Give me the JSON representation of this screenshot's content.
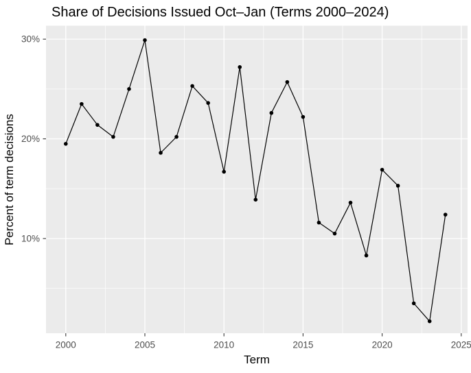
{
  "chart_data": {
    "type": "line",
    "title": "Share of Decisions Issued Oct–Jan (Terms 2000–2024)",
    "xlabel": "Term",
    "ylabel": "Percent of term decisions",
    "x": [
      2000,
      2001,
      2002,
      2003,
      2004,
      2005,
      2006,
      2007,
      2008,
      2009,
      2010,
      2011,
      2012,
      2013,
      2014,
      2015,
      2016,
      2017,
      2018,
      2019,
      2020,
      2021,
      2022,
      2023,
      2024
    ],
    "values": [
      19.5,
      23.5,
      21.4,
      20.2,
      25.0,
      29.9,
      18.6,
      20.2,
      25.3,
      23.6,
      16.7,
      27.2,
      13.9,
      22.6,
      25.7,
      22.2,
      11.6,
      10.5,
      13.6,
      8.3,
      16.9,
      15.3,
      3.5,
      1.7,
      12.4
    ],
    "xlim": [
      1998.75,
      2025.4
    ],
    "ylim": [
      0.5,
      31.35
    ],
    "x_major_ticks": [
      2000,
      2005,
      2010,
      2015,
      2020,
      2025
    ],
    "x_major_labels": [
      "2000",
      "2005",
      "2010",
      "2015",
      "2020",
      "2025"
    ],
    "x_minor_ticks": [
      2002.5,
      2007.5,
      2012.5,
      2017.5,
      2022.5
    ],
    "y_major_ticks": [
      10,
      20,
      30
    ],
    "y_major_labels": [
      "10%",
      "20%",
      "30%"
    ],
    "y_minor_ticks": [
      5,
      15,
      25
    ],
    "grid": "on",
    "legend": "none",
    "style": {
      "panel_bg": "#EBEBEB",
      "grid_color": "#FFFFFF",
      "line_color": "#000000",
      "point_color": "#000000",
      "axis_text_color": "#4D4D4D",
      "tick_color": "#333333",
      "title_color": "#000000"
    }
  }
}
